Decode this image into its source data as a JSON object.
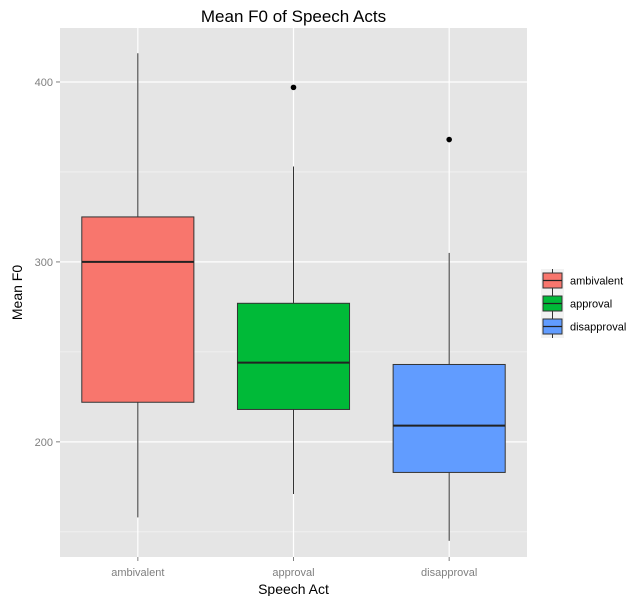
{
  "chart_data": {
    "type": "boxplot",
    "title": "Mean F0 of Speech Acts",
    "xlabel": "Speech Act",
    "ylabel": "Mean F0",
    "ylim": [
      136,
      430
    ],
    "y_ticks": [
      200,
      300,
      400
    ],
    "grid": true,
    "legend_position": "right",
    "categories": [
      "ambivalent",
      "approval",
      "disapproval"
    ],
    "colors": [
      "#f8766d",
      "#00ba38",
      "#619cff"
    ],
    "series": [
      {
        "name": "ambivalent",
        "whisker_low": 158,
        "q1": 222,
        "median": 300,
        "q3": 325,
        "whisker_high": 416,
        "outliers": []
      },
      {
        "name": "approval",
        "whisker_low": 171,
        "q1": 218,
        "median": 244,
        "q3": 277,
        "whisker_high": 353,
        "outliers": [
          397
        ]
      },
      {
        "name": "disapproval",
        "whisker_low": 145,
        "q1": 183,
        "median": 209,
        "q3": 243,
        "whisker_high": 305,
        "outliers": [
          368
        ]
      }
    ]
  }
}
